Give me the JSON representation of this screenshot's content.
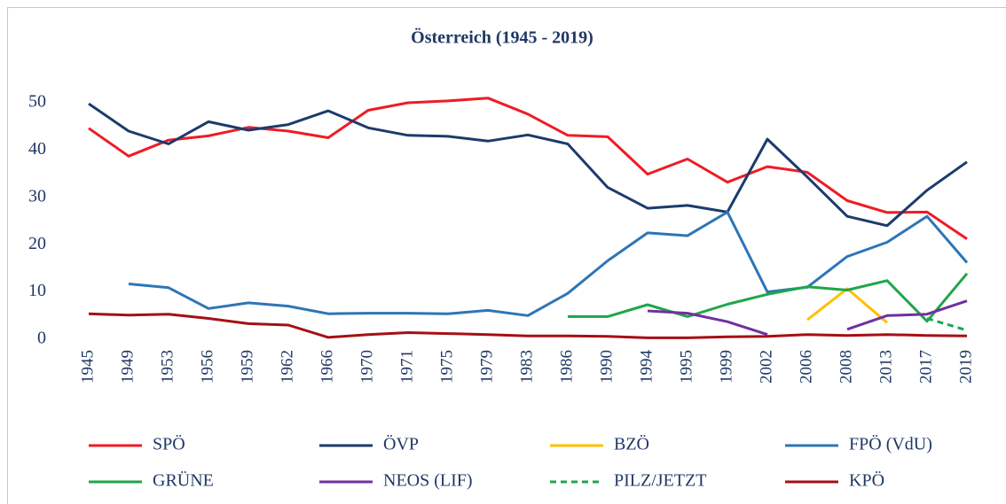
{
  "chart_data": {
    "type": "line",
    "title": "Österreich (1945 - 2019)",
    "categories": [
      "1945",
      "1949",
      "1953",
      "1956",
      "1959",
      "1962",
      "1966",
      "1970",
      "1971",
      "1975",
      "1979",
      "1983",
      "1986",
      "1990",
      "1994",
      "1995",
      "1999",
      "2002",
      "2006",
      "2008",
      "2013",
      "2017",
      "2019"
    ],
    "ylim": [
      0,
      55
    ],
    "yticks": [
      0,
      10,
      20,
      30,
      40,
      50
    ],
    "grid": false,
    "legend": "bottom",
    "series": [
      {
        "name": "SPÖ",
        "color": "#ee1c25",
        "values": [
          44.6,
          38.7,
          42.1,
          43.0,
          44.8,
          44.0,
          42.6,
          48.4,
          50.0,
          50.4,
          51.0,
          47.6,
          43.1,
          42.8,
          34.9,
          38.1,
          33.2,
          36.5,
          35.3,
          29.3,
          26.8,
          26.9,
          21.2
        ]
      },
      {
        "name": "ÖVP",
        "color": "#1c3b6c",
        "values": [
          49.8,
          44.0,
          41.3,
          46.0,
          44.2,
          45.4,
          48.3,
          44.7,
          43.1,
          42.9,
          41.9,
          43.2,
          41.3,
          32.1,
          27.7,
          28.3,
          26.9,
          42.3,
          34.3,
          26.0,
          24.0,
          31.5,
          37.5
        ]
      },
      {
        "name": "BZÖ",
        "color": "#ffc000",
        "values": [
          null,
          null,
          null,
          null,
          null,
          null,
          null,
          null,
          null,
          null,
          null,
          null,
          null,
          null,
          null,
          null,
          null,
          null,
          4.1,
          10.7,
          3.5,
          null,
          null
        ]
      },
      {
        "name": "FPÖ (VdU)",
        "color": "#2e75b6",
        "values": [
          null,
          11.7,
          10.9,
          6.5,
          7.7,
          7.0,
          5.4,
          5.5,
          5.5,
          5.4,
          6.1,
          5.0,
          9.7,
          16.6,
          22.5,
          21.9,
          26.9,
          10.0,
          11.0,
          17.5,
          20.5,
          26.0,
          16.2
        ]
      },
      {
        "name": "GRÜNE",
        "color": "#1ea64a",
        "values": [
          null,
          null,
          null,
          null,
          null,
          null,
          null,
          null,
          null,
          null,
          null,
          null,
          4.8,
          4.8,
          7.3,
          4.8,
          7.4,
          9.5,
          11.1,
          10.4,
          12.4,
          3.8,
          13.9
        ]
      },
      {
        "name": "NEOS (LIF)",
        "color": "#7030a0",
        "values": [
          null,
          null,
          null,
          null,
          null,
          null,
          null,
          null,
          null,
          null,
          null,
          null,
          null,
          null,
          6.0,
          5.5,
          3.7,
          1.0,
          null,
          2.1,
          5.0,
          5.3,
          8.1
        ]
      },
      {
        "name": "PILZ/JETZT",
        "color": "#1ea64a",
        "dashed": true,
        "values": [
          null,
          null,
          null,
          null,
          null,
          null,
          null,
          null,
          null,
          null,
          null,
          null,
          null,
          null,
          null,
          null,
          null,
          null,
          null,
          null,
          null,
          4.4,
          1.9
        ]
      },
      {
        "name": "KPÖ",
        "color": "#a50f15",
        "values": [
          5.4,
          5.1,
          5.3,
          4.4,
          3.3,
          3.0,
          0.4,
          1.0,
          1.4,
          1.2,
          1.0,
          0.7,
          0.7,
          0.6,
          0.3,
          0.3,
          0.5,
          0.6,
          1.0,
          0.8,
          1.0,
          0.8,
          0.7
        ]
      }
    ]
  }
}
